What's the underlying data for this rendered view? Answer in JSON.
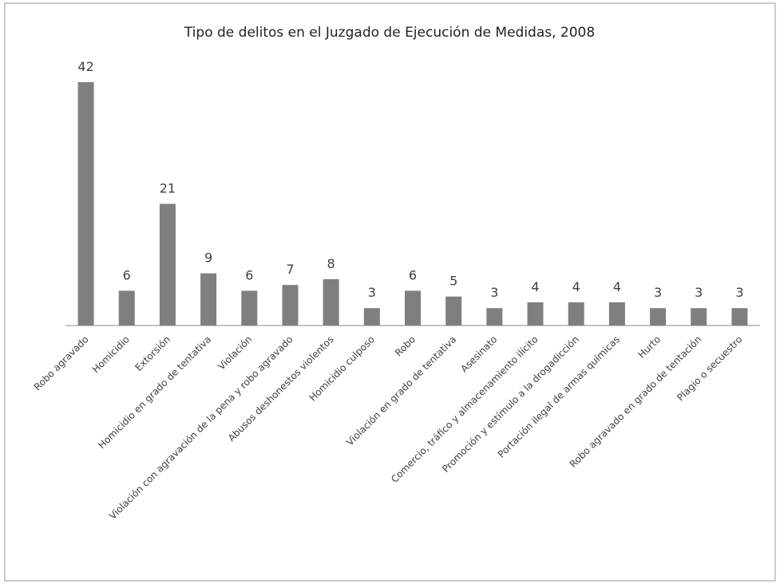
{
  "chart_data": {
    "type": "bar",
    "title": "Tipo de delitos en el Juzgado de Ejecución de Medidas, 2008",
    "categories": [
      "Robo agravado",
      "Homicidio",
      "Extorsión",
      "Homicidio en grado de tentativa",
      "Violación",
      "Violación con agravación de la pena y robo agravado",
      "Abusos deshonestos violentos",
      "Homicidio culposo",
      "Robo",
      "Violación en grado de tentativa",
      "Asesinato",
      "Comercio, tráfico y almacenamiento ilícito",
      "Promoción y estímulo a la drogadicción",
      "Portación ilegal de armas químicas",
      "Hurto",
      "Robo agravado en grado de tentación",
      "Plagio o secuestro"
    ],
    "values": [
      42,
      6,
      21,
      9,
      6,
      7,
      8,
      3,
      6,
      5,
      3,
      4,
      4,
      4,
      3,
      3,
      3
    ],
    "color": "#7f7f7f"
  }
}
